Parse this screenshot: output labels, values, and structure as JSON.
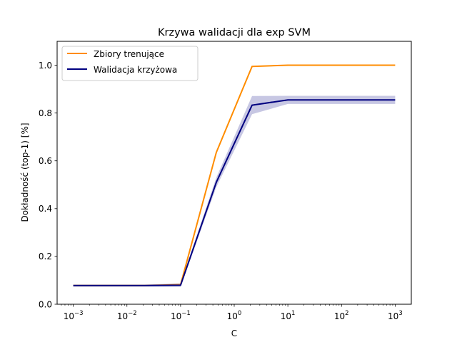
{
  "chart_data": {
    "type": "line",
    "title": "Krzywa walidacji dla exp SVM",
    "xlabel": "C",
    "ylabel": "Dokładność (top-1) [%]",
    "xscale": "log",
    "xlim": [
      0.0005,
      2000
    ],
    "ylim": [
      0.0,
      1.1
    ],
    "x": [
      0.001,
      0.00464,
      0.0215,
      0.1,
      0.464,
      2.15,
      10,
      46.4,
      215,
      1000
    ],
    "xticks": [
      {
        "value": 0.001,
        "base": "10",
        "exp": "−3"
      },
      {
        "value": 0.01,
        "base": "10",
        "exp": "−2"
      },
      {
        "value": 0.1,
        "base": "10",
        "exp": "−1"
      },
      {
        "value": 1,
        "base": "10",
        "exp": "0"
      },
      {
        "value": 10,
        "base": "10",
        "exp": "1"
      },
      {
        "value": 100,
        "base": "10",
        "exp": "2"
      },
      {
        "value": 1000,
        "base": "10",
        "exp": "3"
      }
    ],
    "yticks": [
      {
        "value": 0.0,
        "label": "0.0"
      },
      {
        "value": 0.2,
        "label": "0.2"
      },
      {
        "value": 0.4,
        "label": "0.4"
      },
      {
        "value": 0.6,
        "label": "0.6"
      },
      {
        "value": 0.8,
        "label": "0.8"
      },
      {
        "value": 1.0,
        "label": "1.0"
      }
    ],
    "series": [
      {
        "name": "Zbiory trenujące",
        "color": "#ff8c00",
        "values": [
          0.078,
          0.078,
          0.078,
          0.082,
          0.635,
          0.995,
          1.0,
          1.0,
          1.0,
          1.0
        ],
        "band": [
          0.0,
          0.0,
          0.0,
          0.004,
          0.004,
          0.002,
          0.0,
          0.0,
          0.0,
          0.0
        ]
      },
      {
        "name": "Walidacja krzyżowa",
        "color": "#000080",
        "band_color": "#000080",
        "values": [
          0.078,
          0.078,
          0.078,
          0.08,
          0.51,
          0.833,
          0.855,
          0.855,
          0.855,
          0.855
        ],
        "band": [
          0.004,
          0.004,
          0.004,
          0.008,
          0.02,
          0.038,
          0.017,
          0.017,
          0.017,
          0.017
        ]
      }
    ],
    "grid": false,
    "legend": "top-left"
  }
}
